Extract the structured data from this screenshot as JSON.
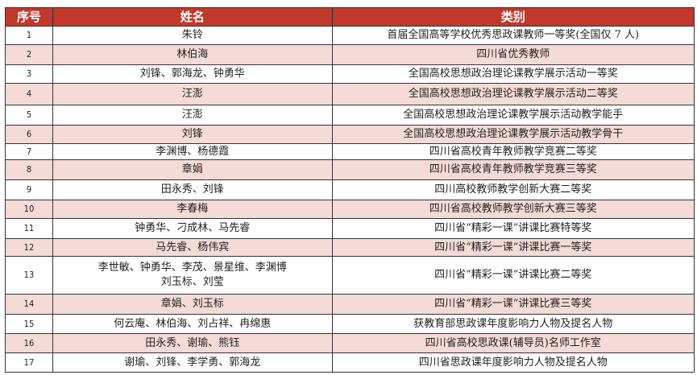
{
  "table": {
    "headers": [
      "序号",
      "姓名",
      "类别"
    ],
    "rows": [
      {
        "no": "1",
        "names": "朱铃",
        "category": "首届全国高等学校优秀思政课教师一等奖(全国仅 7 人)"
      },
      {
        "no": "2",
        "names": "林伯海",
        "category": "四川省优秀教师"
      },
      {
        "no": "3",
        "names": "刘锋、郭海龙、钟勇华",
        "category": "全国高校思想政治理论课教学展示活动一等奖"
      },
      {
        "no": "4",
        "names": "汪澎",
        "category": "全国高校思想政治理论课教学展示活动二等奖"
      },
      {
        "no": "5",
        "names": "汪澎",
        "category": "全国高校思想政治理论课教学展示活动教学能手"
      },
      {
        "no": "6",
        "names": "刘锋",
        "category": "全国高校思想政治理论课教学展示活动教学骨干"
      },
      {
        "no": "7",
        "names": "李渊博、杨德霞",
        "category": "四川省高校青年教师教学竞赛二等奖"
      },
      {
        "no": "8",
        "names": "章娟",
        "category": "四川省高校青年教师教学竞赛三等奖"
      },
      {
        "no": "9",
        "names": "田永秀、刘锋",
        "category": "四川高校教师教学创新大赛二等奖"
      },
      {
        "no": "10",
        "names": "李春梅",
        "category": "四川省高校教师教学创新大赛三等奖"
      },
      {
        "no": "11",
        "names": "钟勇华、刁成林、马先睿",
        "category": "四川省“精彩一课”讲课比赛特等奖"
      },
      {
        "no": "12",
        "names": "马先睿、杨伟宾",
        "category": "四川省“精彩一课”讲课比赛一等奖"
      },
      {
        "no": "13",
        "names": "李世敏、钟勇华、李茂、景星维、李渊博",
        "names2": "刘玉标、刘莹",
        "category": "四川省“精彩一课”讲课比赛二等奖"
      },
      {
        "no": "14",
        "names": "章娟、刘玉标",
        "category": "四川省“精彩一课”讲课比赛三等奖"
      },
      {
        "no": "15",
        "names": "何云庵、林伯海、刘占祥、冉绵惠",
        "category": "获教育部思政课年度影响力人物及提名人物"
      },
      {
        "no": "16",
        "names": "田永秀、谢瑜、熊钰",
        "category": "四川省高校思政课(辅导员)名师工作室"
      },
      {
        "no": "17",
        "names": "谢瑜、刘锋、李学勇、郭海龙",
        "category": "四川省思政课年度影响力人物及提名人物"
      }
    ]
  },
  "colors": {
    "header": "#c0392b",
    "alt_row": "#f4dbd7"
  }
}
